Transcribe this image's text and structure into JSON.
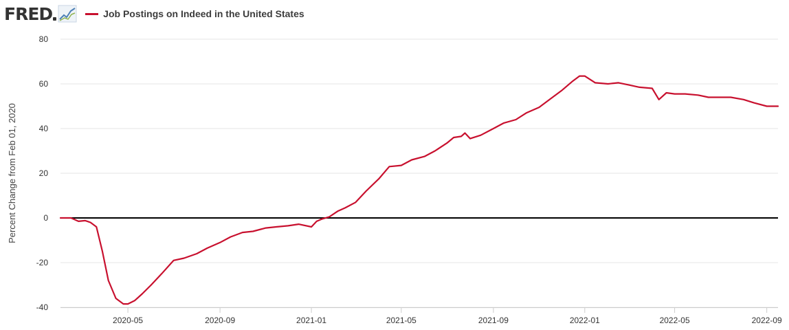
{
  "logo": {
    "text": "FRED",
    "icon": "fred-graph-icon"
  },
  "colors": {
    "series": "#c8102e",
    "zero_line": "#000000",
    "grid": "#e6e6e6"
  },
  "chart_data": {
    "type": "line",
    "title": "",
    "xlabel": "",
    "ylabel": "Percent Change from Feb 01, 2020",
    "ylim": [
      -40,
      80
    ],
    "xlim": [
      "2020-02-01",
      "2022-09-16"
    ],
    "yticks": [
      80,
      60,
      40,
      20,
      0,
      -20,
      -40
    ],
    "xticks": [
      "2020-05",
      "2020-09",
      "2021-01",
      "2021-05",
      "2021-09",
      "2022-01",
      "2022-05",
      "2022-09"
    ],
    "grid": true,
    "legend_position": "top-left",
    "reference_line": 0,
    "series": [
      {
        "name": "Job Postings on Indeed in the United States",
        "color": "#c8102e",
        "x": [
          "2020-02-01",
          "2020-02-15",
          "2020-02-25",
          "2020-03-05",
          "2020-03-12",
          "2020-03-20",
          "2020-03-28",
          "2020-04-05",
          "2020-04-15",
          "2020-04-25",
          "2020-05-01",
          "2020-05-10",
          "2020-05-20",
          "2020-06-01",
          "2020-06-15",
          "2020-07-01",
          "2020-07-15",
          "2020-08-01",
          "2020-08-15",
          "2020-09-01",
          "2020-09-15",
          "2020-10-01",
          "2020-10-15",
          "2020-11-01",
          "2020-11-15",
          "2020-12-01",
          "2020-12-15",
          "2021-01-01",
          "2021-01-08",
          "2021-01-15",
          "2021-01-25",
          "2021-02-05",
          "2021-02-15",
          "2021-03-01",
          "2021-03-15",
          "2021-04-01",
          "2021-04-15",
          "2021-05-01",
          "2021-05-15",
          "2021-06-01",
          "2021-06-15",
          "2021-07-01",
          "2021-07-10",
          "2021-07-20",
          "2021-07-25",
          "2021-08-01",
          "2021-08-15",
          "2021-09-01",
          "2021-09-15",
          "2021-10-01",
          "2021-10-15",
          "2021-11-01",
          "2021-11-15",
          "2021-12-01",
          "2021-12-15",
          "2021-12-25",
          "2022-01-01",
          "2022-01-15",
          "2022-02-01",
          "2022-02-15",
          "2022-03-01",
          "2022-03-15",
          "2022-04-01",
          "2022-04-10",
          "2022-04-20",
          "2022-05-01",
          "2022-05-15",
          "2022-06-01",
          "2022-06-15",
          "2022-07-01",
          "2022-07-15",
          "2022-08-01",
          "2022-08-15",
          "2022-09-01",
          "2022-09-16"
        ],
        "values": [
          0,
          0,
          -1.5,
          -1.2,
          -2,
          -4,
          -15,
          -28,
          -36,
          -38.5,
          -38.5,
          -37,
          -34,
          -30,
          -25,
          -19,
          -18,
          -16,
          -13.5,
          -11,
          -8.5,
          -6.5,
          -6,
          -4.5,
          -4,
          -3.5,
          -2.8,
          -4,
          -1.5,
          -0.5,
          0.5,
          3,
          4.5,
          7,
          12,
          17.5,
          23,
          23.5,
          26,
          27.5,
          30,
          33.5,
          36,
          36.5,
          38,
          35.5,
          37,
          40,
          42.5,
          44,
          47,
          49.5,
          53,
          57,
          61,
          63.5,
          63.5,
          60.5,
          60,
          60.5,
          59.5,
          58.5,
          58,
          53,
          56,
          55.5,
          55.5,
          55,
          54,
          54,
          54,
          53,
          51.5,
          50,
          50
        ]
      }
    ]
  }
}
